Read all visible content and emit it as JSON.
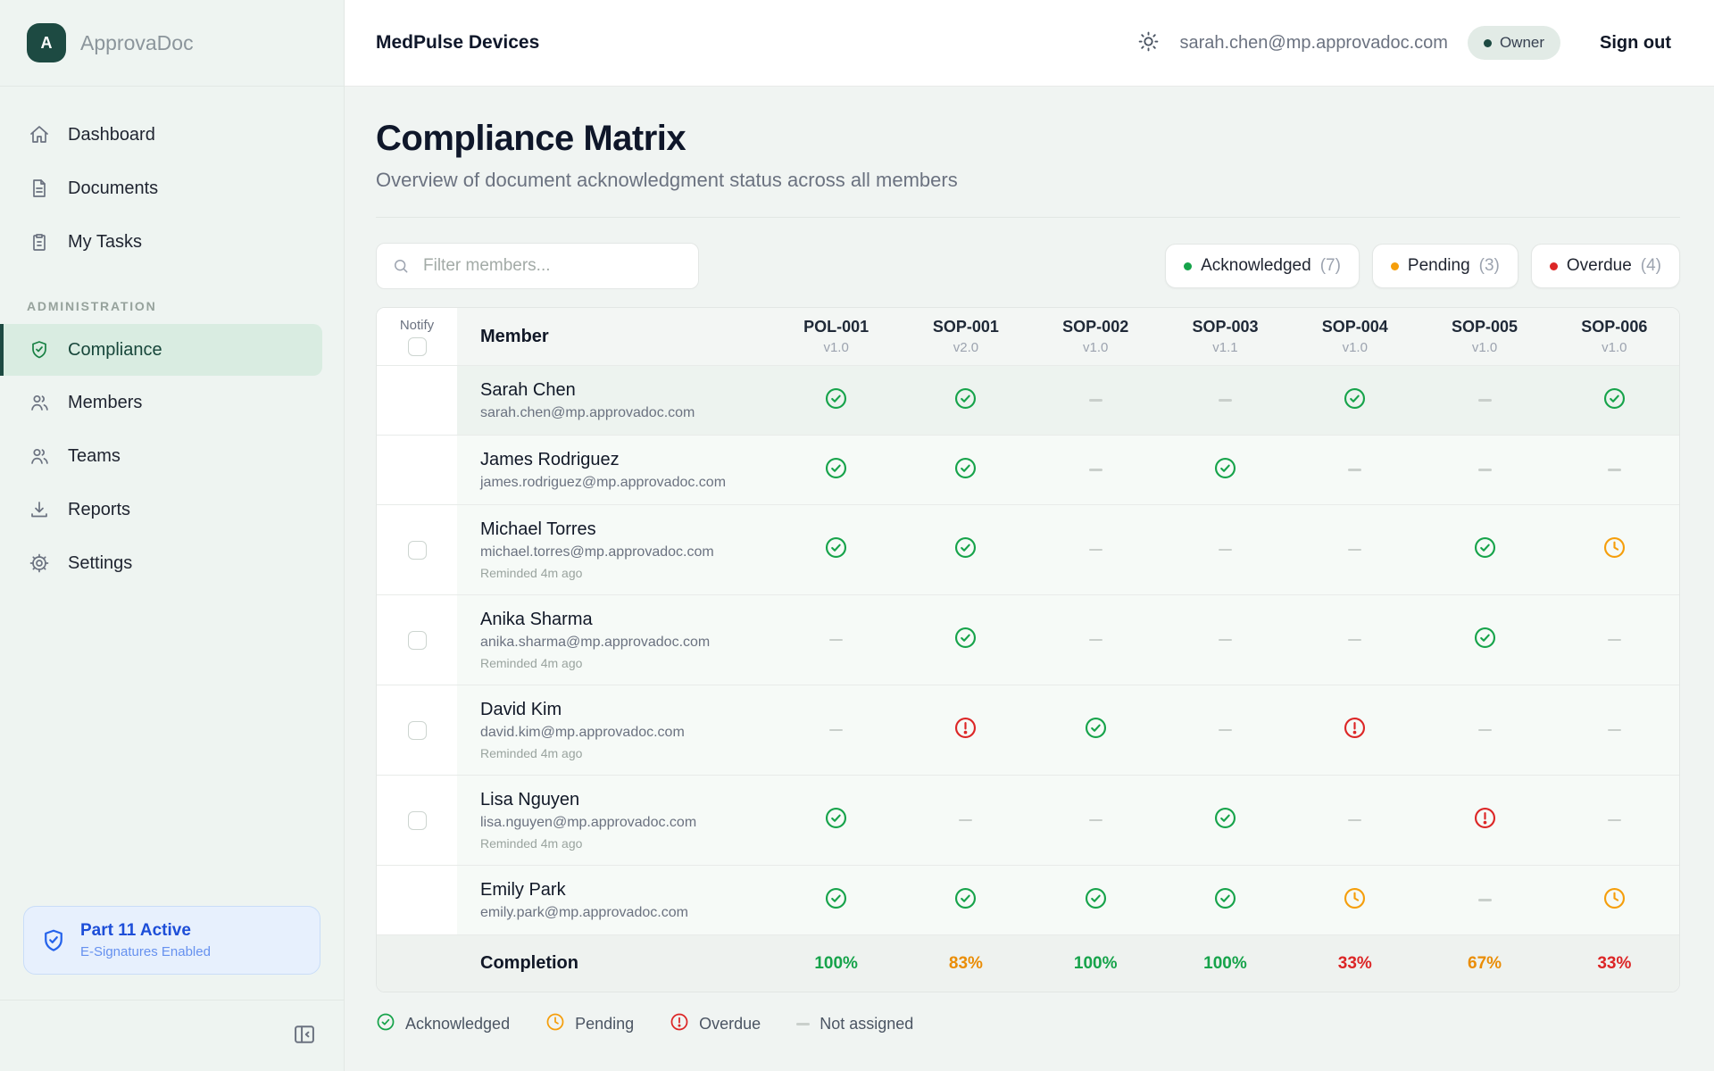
{
  "brand": {
    "name": "ApprovaDoc",
    "logo_letter": "A"
  },
  "header": {
    "workspace": "MedPulse Devices",
    "user_email": "sarah.chen@mp.approvadoc.com",
    "role_badge": "Owner",
    "sign_out": "Sign out"
  },
  "sidebar": {
    "main_items": [
      {
        "label": "Dashboard",
        "icon": "home"
      },
      {
        "label": "Documents",
        "icon": "document"
      },
      {
        "label": "My Tasks",
        "icon": "clipboard"
      }
    ],
    "section_label": "ADMINISTRATION",
    "admin_items": [
      {
        "label": "Compliance",
        "icon": "shield-check",
        "active": true
      },
      {
        "label": "Members",
        "icon": "users"
      },
      {
        "label": "Teams",
        "icon": "users"
      },
      {
        "label": "Reports",
        "icon": "download"
      },
      {
        "label": "Settings",
        "icon": "gear"
      }
    ],
    "part11": {
      "title": "Part 11 Active",
      "subtitle": "E-Signatures Enabled"
    }
  },
  "page": {
    "title": "Compliance Matrix",
    "subtitle": "Overview of document acknowledgment status across all members"
  },
  "filters": {
    "search_placeholder": "Filter members...",
    "chips": [
      {
        "label": "Acknowledged",
        "count": "(7)",
        "color": "#16a34a"
      },
      {
        "label": "Pending",
        "count": "(3)",
        "color": "#f59e0b"
      },
      {
        "label": "Overdue",
        "count": "(4)",
        "color": "#dc2626"
      }
    ]
  },
  "matrix": {
    "notify_header": "Notify",
    "member_header": "Member",
    "documents": [
      {
        "code": "POL-001",
        "version": "v1.0"
      },
      {
        "code": "SOP-001",
        "version": "v2.0"
      },
      {
        "code": "SOP-002",
        "version": "v1.0"
      },
      {
        "code": "SOP-003",
        "version": "v1.1"
      },
      {
        "code": "SOP-004",
        "version": "v1.0"
      },
      {
        "code": "SOP-005",
        "version": "v1.0"
      },
      {
        "code": "SOP-006",
        "version": "v1.0"
      }
    ],
    "members": [
      {
        "name": "Sarah Chen",
        "email": "sarah.chen@mp.approvadoc.com",
        "notify": false,
        "reminded": "",
        "highlight": true,
        "statuses": [
          "ack",
          "ack",
          "na",
          "na",
          "ack",
          "na",
          "ack"
        ]
      },
      {
        "name": "James Rodriguez",
        "email": "james.rodriguez@mp.approvadoc.com",
        "notify": false,
        "reminded": "",
        "highlight": false,
        "statuses": [
          "ack",
          "ack",
          "na",
          "ack",
          "na",
          "na",
          "na"
        ]
      },
      {
        "name": "Michael Torres",
        "email": "michael.torres@mp.approvadoc.com",
        "notify": true,
        "reminded": "Reminded 4m ago",
        "highlight": false,
        "statuses": [
          "ack",
          "ack",
          "na",
          "na",
          "na",
          "ack",
          "pending"
        ]
      },
      {
        "name": "Anika Sharma",
        "email": "anika.sharma@mp.approvadoc.com",
        "notify": true,
        "reminded": "Reminded 4m ago",
        "highlight": false,
        "statuses": [
          "na",
          "ack",
          "na",
          "na",
          "na",
          "ack",
          "na"
        ]
      },
      {
        "name": "David Kim",
        "email": "david.kim@mp.approvadoc.com",
        "notify": true,
        "reminded": "Reminded 4m ago",
        "highlight": false,
        "statuses": [
          "na",
          "overdue",
          "ack",
          "na",
          "overdue",
          "na",
          "na"
        ]
      },
      {
        "name": "Lisa Nguyen",
        "email": "lisa.nguyen@mp.approvadoc.com",
        "notify": true,
        "reminded": "Reminded 4m ago",
        "highlight": false,
        "statuses": [
          "ack",
          "na",
          "na",
          "ack",
          "na",
          "overdue",
          "na"
        ]
      },
      {
        "name": "Emily Park",
        "email": "emily.park@mp.approvadoc.com",
        "notify": false,
        "reminded": "",
        "highlight": false,
        "statuses": [
          "ack",
          "ack",
          "ack",
          "ack",
          "pending",
          "na",
          "pending"
        ]
      }
    ],
    "completion_label": "Completion",
    "completion": [
      {
        "value": "100%",
        "tone": "green"
      },
      {
        "value": "83%",
        "tone": "orange"
      },
      {
        "value": "100%",
        "tone": "green"
      },
      {
        "value": "100%",
        "tone": "green"
      },
      {
        "value": "33%",
        "tone": "red"
      },
      {
        "value": "67%",
        "tone": "orange"
      },
      {
        "value": "33%",
        "tone": "red"
      }
    ]
  },
  "legend": [
    {
      "label": "Acknowledged",
      "icon": "ack"
    },
    {
      "label": "Pending",
      "icon": "pending"
    },
    {
      "label": "Overdue",
      "icon": "overdue"
    },
    {
      "label": "Not assigned",
      "icon": "na"
    }
  ],
  "colors": {
    "accent": "#1d4a42",
    "acknowledged": "#16a34a",
    "pending": "#f59e0b",
    "overdue": "#dc2626",
    "part11_blue": "#2563eb"
  }
}
